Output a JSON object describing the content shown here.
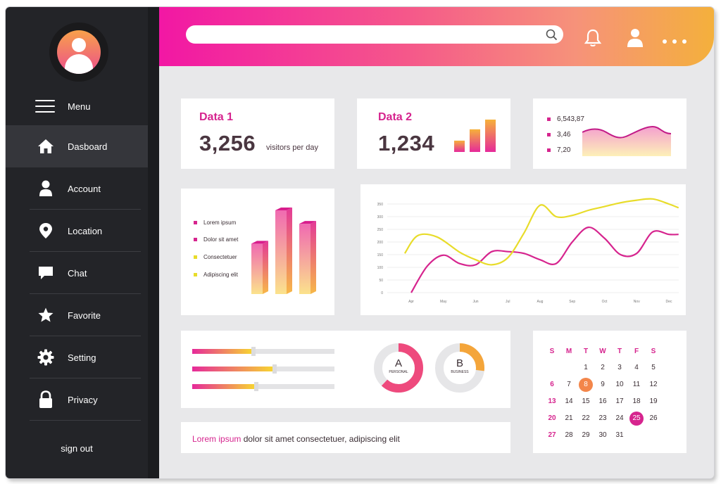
{
  "sidebar": {
    "menu_label": "Menu",
    "items": [
      {
        "label": "Dasboard",
        "icon": "home-icon",
        "active": true
      },
      {
        "label": "Account",
        "icon": "user-icon"
      },
      {
        "label": "Location",
        "icon": "location-pin-icon"
      },
      {
        "label": "Chat",
        "icon": "chat-icon"
      },
      {
        "label": "Favorite",
        "icon": "star-icon"
      },
      {
        "label": "Setting",
        "icon": "gear-icon"
      },
      {
        "label": "Privacy",
        "icon": "lock-icon"
      }
    ],
    "signout_label": "sign out"
  },
  "header": {
    "search_placeholder": "",
    "icons": [
      "bell-icon",
      "user-icon",
      "more-dots-icon"
    ]
  },
  "card_data1": {
    "title": "Data 1",
    "value": "3,256",
    "unit": "visitors per day"
  },
  "card_data2": {
    "title": "Data 2",
    "value": "1,234",
    "mini_bars": [
      0.35,
      0.7,
      1.0
    ]
  },
  "card_stats": {
    "values": [
      "6,543,87",
      "3,46",
      "7,20"
    ]
  },
  "legend": {
    "items": [
      {
        "label": "Lorem ipsum",
        "color": "#d6248e"
      },
      {
        "label": "Dolor sit amet",
        "color": "#d6248e"
      },
      {
        "label": "Consectetuer",
        "color": "#e8dc2a"
      },
      {
        "label": "Adipiscing elit",
        "color": "#e8dc2a"
      }
    ]
  },
  "chart_data": {
    "type": "line",
    "x": [
      "Apr",
      "May",
      "Jun",
      "Jul",
      "Aug",
      "Sep",
      "Oct",
      "Nov",
      "Dec"
    ],
    "yticks": [
      0,
      50,
      100,
      150,
      200,
      250,
      300,
      350
    ],
    "ylim": [
      0,
      350
    ],
    "series": [
      {
        "color": "#d6248e",
        "points": [
          [
            0,
            0
          ],
          [
            0.5,
            105
          ],
          [
            1.0,
            148
          ],
          [
            1.5,
            115
          ],
          [
            2.0,
            110
          ],
          [
            2.5,
            162
          ],
          [
            3.0,
            162
          ],
          [
            3.5,
            155
          ],
          [
            4.0,
            130
          ],
          [
            4.5,
            115
          ],
          [
            5.0,
            200
          ],
          [
            5.5,
            258
          ],
          [
            6.0,
            215
          ],
          [
            6.5,
            150
          ],
          [
            7.0,
            155
          ],
          [
            7.5,
            240
          ],
          [
            8.0,
            230
          ],
          [
            8.3,
            230
          ]
        ]
      },
      {
        "color": "#e8dc2a",
        "points": [
          [
            -0.2,
            155
          ],
          [
            0.2,
            225
          ],
          [
            0.8,
            220
          ],
          [
            1.5,
            160
          ],
          [
            2.0,
            130
          ],
          [
            2.5,
            110
          ],
          [
            3.0,
            138
          ],
          [
            3.5,
            235
          ],
          [
            4.0,
            345
          ],
          [
            4.5,
            300
          ],
          [
            5.0,
            305
          ],
          [
            5.5,
            325
          ],
          [
            6.0,
            340
          ],
          [
            6.5,
            355
          ],
          [
            7.0,
            365
          ],
          [
            7.5,
            370
          ],
          [
            8.0,
            350
          ],
          [
            8.3,
            335
          ]
        ]
      }
    ],
    "grid": true
  },
  "bars3d": {
    "values": [
      0.56,
      0.93,
      0.78
    ]
  },
  "sliders": {
    "values": [
      0.42,
      0.57,
      0.44
    ]
  },
  "donuts": [
    {
      "letter": "A",
      "label": "PERSONAL",
      "fraction": 0.62,
      "color": "#ee4a7d"
    },
    {
      "letter": "B",
      "label": "BUSINESS",
      "fraction": 0.27,
      "color": "#f4a53a"
    }
  ],
  "footer": {
    "highlight": "Lorem ipsum",
    "rest": " dolor sit amet consectetuer, adipiscing elit"
  },
  "calendar": {
    "headers": [
      "S",
      "M",
      "T",
      "W",
      "T",
      "F",
      "S"
    ],
    "weeks": [
      [
        "",
        "",
        "1",
        "2",
        "3",
        "4",
        "5"
      ],
      [
        "6",
        "7",
        "8",
        "9",
        "10",
        "11",
        "12"
      ],
      [
        "13",
        "14",
        "15",
        "16",
        "17",
        "18",
        "19"
      ],
      [
        "20",
        "21",
        "22",
        "23",
        "24",
        "25",
        "26"
      ],
      [
        "27",
        "28",
        "29",
        "30",
        "31",
        "",
        ""
      ]
    ],
    "marked": [
      {
        "day": "8",
        "color": "#f3864a"
      },
      {
        "day": "25",
        "color": "#d6248e"
      }
    ]
  },
  "colors": {
    "accent": "#d6248e",
    "orange": "#f4a53a",
    "yellow": "#e8dc2a",
    "sidebar": "#232428",
    "background": "#e8e8ea"
  }
}
